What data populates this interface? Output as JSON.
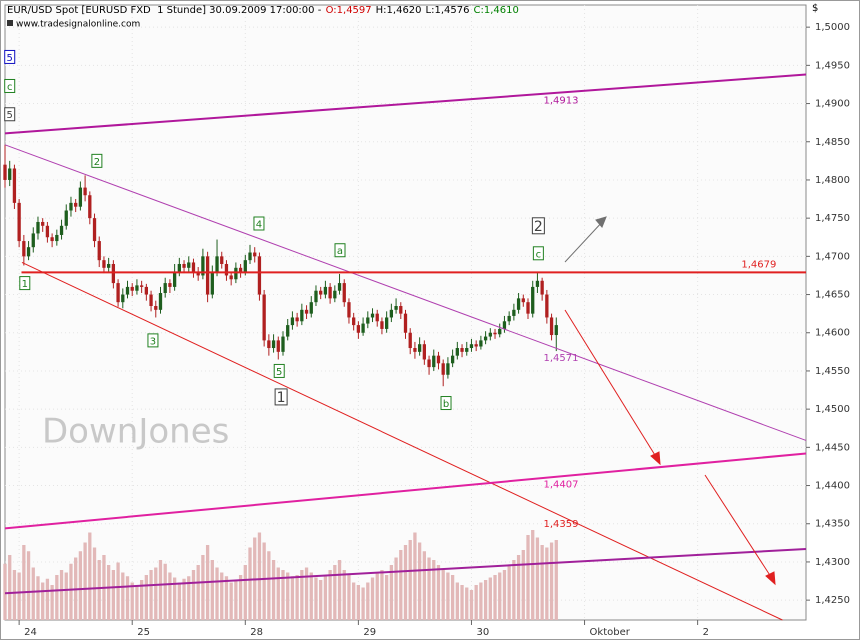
{
  "chart_data": {
    "type": "candlestick",
    "header": {
      "title": "EUR/USD Spot [EURUSD FXD  1 Stunde] 30.09.2009 17:00:00 -",
      "ohlc": [
        {
          "label": "O:1,4597",
          "color": "#d00000"
        },
        {
          "label": "H:1,4620",
          "color": "#000000"
        },
        {
          "label": "L:1,4576",
          "color": "#000000"
        },
        {
          "label": "C:1,4610",
          "color": "#008000"
        }
      ],
      "source": "www.tradesignalonline.com"
    },
    "currency": "$",
    "watermark": "DownJones",
    "up_color": "#1e5e1e",
    "down_color": "#b02020",
    "volume_color": "#e2b8b8",
    "xlim": [
      0,
      170
    ],
    "xticks": [
      {
        "value": 3,
        "label": "24"
      },
      {
        "value": 27,
        "label": "25"
      },
      {
        "value": 51,
        "label": "28"
      },
      {
        "value": 75,
        "label": "29"
      },
      {
        "value": 99,
        "label": "30"
      },
      {
        "value": 123,
        "label": "Oktober"
      },
      {
        "value": 147,
        "label": "2"
      }
    ],
    "ylim": [
      1.4224,
      1.5029
    ],
    "yticks": [
      {
        "value": 1.425,
        "label": "1,4250"
      },
      {
        "value": 1.43,
        "label": "1,4300"
      },
      {
        "value": 1.435,
        "label": "1,4350"
      },
      {
        "value": 1.44,
        "label": "1,4400"
      },
      {
        "value": 1.445,
        "label": "1,4450"
      },
      {
        "value": 1.45,
        "label": "1,4500"
      },
      {
        "value": 1.455,
        "label": "1,4550"
      },
      {
        "value": 1.46,
        "label": "1,4600"
      },
      {
        "value": 1.465,
        "label": "1,4650"
      },
      {
        "value": 1.47,
        "label": "1,4700"
      },
      {
        "value": 1.475,
        "label": "1,4750"
      },
      {
        "value": 1.48,
        "label": "1,4800"
      },
      {
        "value": 1.485,
        "label": "1,4850"
      },
      {
        "value": 1.49,
        "label": "1,4900"
      },
      {
        "value": 1.495,
        "label": "1,4950"
      },
      {
        "value": 1.5,
        "label": "1,5000"
      }
    ],
    "candles": [
      [
        1.482,
        1.4846,
        1.479,
        1.48
      ],
      [
        1.48,
        1.4825,
        1.4792,
        1.4815
      ],
      [
        1.4815,
        1.482,
        1.4762,
        1.477
      ],
      [
        1.477,
        1.4775,
        1.4712,
        1.472
      ],
      [
        1.472,
        1.4728,
        1.4688,
        1.47
      ],
      [
        1.47,
        1.472,
        1.4695,
        1.4712
      ],
      [
        1.4712,
        1.4738,
        1.4705,
        1.473
      ],
      [
        1.473,
        1.4752,
        1.4722,
        1.4745
      ],
      [
        1.4745,
        1.475,
        1.4732,
        1.474
      ],
      [
        1.474,
        1.4745,
        1.4718,
        1.4725
      ],
      [
        1.4725,
        1.473,
        1.4712,
        1.472
      ],
      [
        1.472,
        1.4735,
        1.4714,
        1.4728
      ],
      [
        1.4728,
        1.4748,
        1.4722,
        1.474
      ],
      [
        1.474,
        1.4768,
        1.4735,
        1.476
      ],
      [
        1.476,
        1.4778,
        1.4752,
        1.477
      ],
      [
        1.477,
        1.4775,
        1.4758,
        1.4765
      ],
      [
        1.4765,
        1.4798,
        1.476,
        1.479
      ],
      [
        1.479,
        1.4806,
        1.4772,
        1.478
      ],
      [
        1.478,
        1.4785,
        1.4742,
        1.475
      ],
      [
        1.475,
        1.4756,
        1.4712,
        1.472
      ],
      [
        1.472,
        1.4726,
        1.4686,
        1.4695
      ],
      [
        1.4695,
        1.47,
        1.4678,
        1.4685
      ],
      [
        1.4685,
        1.4698,
        1.468,
        1.469
      ],
      [
        1.469,
        1.4695,
        1.4658,
        1.4665
      ],
      [
        1.4665,
        1.467,
        1.4634,
        1.464
      ],
      [
        1.464,
        1.4658,
        1.4632,
        1.465
      ],
      [
        1.465,
        1.4668,
        1.4645,
        1.466
      ],
      [
        1.466,
        1.4665,
        1.4648,
        1.4655
      ],
      [
        1.4655,
        1.467,
        1.465,
        1.4662
      ],
      [
        1.4662,
        1.4668,
        1.4652,
        1.466
      ],
      [
        1.466,
        1.4664,
        1.4642,
        1.465
      ],
      [
        1.465,
        1.4655,
        1.4628,
        1.4635
      ],
      [
        1.4635,
        1.4642,
        1.462,
        1.463
      ],
      [
        1.463,
        1.466,
        1.4625,
        1.4652
      ],
      [
        1.4652,
        1.4672,
        1.4646,
        1.4665
      ],
      [
        1.4665,
        1.467,
        1.4652,
        1.466
      ],
      [
        1.466,
        1.469,
        1.4655,
        1.468
      ],
      [
        1.468,
        1.4698,
        1.4674,
        1.469
      ],
      [
        1.469,
        1.4695,
        1.4678,
        1.4685
      ],
      [
        1.4685,
        1.47,
        1.468,
        1.4692
      ],
      [
        1.4692,
        1.4697,
        1.4672,
        1.468
      ],
      [
        1.468,
        1.4686,
        1.4668,
        1.4675
      ],
      [
        1.4675,
        1.471,
        1.467,
        1.47
      ],
      [
        1.47,
        1.4706,
        1.464,
        1.465
      ],
      [
        1.465,
        1.4688,
        1.4645,
        1.468
      ],
      [
        1.468,
        1.4722,
        1.4674,
        1.47
      ],
      [
        1.47,
        1.4706,
        1.4684,
        1.469
      ],
      [
        1.469,
        1.4695,
        1.4668,
        1.4675
      ],
      [
        1.4675,
        1.468,
        1.4662,
        1.467
      ],
      [
        1.467,
        1.4692,
        1.4665,
        1.4685
      ],
      [
        1.4685,
        1.469,
        1.4672,
        1.468
      ],
      [
        1.468,
        1.4702,
        1.4675,
        1.4695
      ],
      [
        1.4695,
        1.4715,
        1.469,
        1.4705
      ],
      [
        1.4705,
        1.4712,
        1.4692,
        1.47
      ],
      [
        1.47,
        1.4705,
        1.4642,
        1.465
      ],
      [
        1.465,
        1.4656,
        1.4582,
        1.459
      ],
      [
        1.459,
        1.4598,
        1.457,
        1.458
      ],
      [
        1.458,
        1.4598,
        1.4574,
        1.459
      ],
      [
        1.459,
        1.4595,
        1.4565,
        1.4575
      ],
      [
        1.4575,
        1.4602,
        1.457,
        1.4595
      ],
      [
        1.4595,
        1.4618,
        1.459,
        1.461
      ],
      [
        1.461,
        1.4628,
        1.4604,
        1.462
      ],
      [
        1.462,
        1.4626,
        1.4608,
        1.4615
      ],
      [
        1.4615,
        1.4638,
        1.461,
        1.463
      ],
      [
        1.463,
        1.4636,
        1.4618,
        1.4625
      ],
      [
        1.4625,
        1.4648,
        1.462,
        1.464
      ],
      [
        1.464,
        1.4662,
        1.4635,
        1.4655
      ],
      [
        1.4655,
        1.466,
        1.4644,
        1.465
      ],
      [
        1.465,
        1.4668,
        1.4645,
        1.466
      ],
      [
        1.466,
        1.4665,
        1.4638,
        1.4645
      ],
      [
        1.4645,
        1.4662,
        1.464,
        1.4655
      ],
      [
        1.4655,
        1.4677,
        1.465,
        1.4665
      ],
      [
        1.4665,
        1.467,
        1.4634,
        1.464
      ],
      [
        1.464,
        1.4645,
        1.4612,
        1.462
      ],
      [
        1.462,
        1.4626,
        1.4603,
        1.461
      ],
      [
        1.461,
        1.4615,
        1.4592,
        1.46
      ],
      [
        1.46,
        1.462,
        1.4596,
        1.4612
      ],
      [
        1.4612,
        1.4628,
        1.4606,
        1.462
      ],
      [
        1.462,
        1.4632,
        1.4614,
        1.4625
      ],
      [
        1.4625,
        1.463,
        1.4608,
        1.4615
      ],
      [
        1.4615,
        1.462,
        1.4598,
        1.4605
      ],
      [
        1.4605,
        1.4628,
        1.46,
        1.462
      ],
      [
        1.462,
        1.4638,
        1.4614,
        1.463
      ],
      [
        1.463,
        1.4645,
        1.4625,
        1.4635
      ],
      [
        1.4635,
        1.464,
        1.4618,
        1.4625
      ],
      [
        1.4625,
        1.463,
        1.4592,
        1.46
      ],
      [
        1.46,
        1.4606,
        1.4572,
        1.458
      ],
      [
        1.458,
        1.4588,
        1.4566,
        1.4575
      ],
      [
        1.4575,
        1.4594,
        1.457,
        1.4585
      ],
      [
        1.4585,
        1.459,
        1.4558,
        1.4565
      ],
      [
        1.4565,
        1.457,
        1.4545,
        1.4555
      ],
      [
        1.4555,
        1.4578,
        1.455,
        1.457
      ],
      [
        1.457,
        1.4575,
        1.4552,
        1.456
      ],
      [
        1.456,
        1.4565,
        1.453,
        1.4545
      ],
      [
        1.4545,
        1.4568,
        1.454,
        1.456
      ],
      [
        1.456,
        1.4578,
        1.4555,
        1.457
      ],
      [
        1.457,
        1.4588,
        1.4565,
        1.458
      ],
      [
        1.458,
        1.4585,
        1.4568,
        1.4575
      ],
      [
        1.4575,
        1.4588,
        1.457,
        1.458
      ],
      [
        1.458,
        1.4592,
        1.4575,
        1.4585
      ],
      [
        1.4585,
        1.459,
        1.4576,
        1.4582
      ],
      [
        1.4582,
        1.4596,
        1.4578,
        1.459
      ],
      [
        1.459,
        1.4602,
        1.4585,
        1.4595
      ],
      [
        1.4595,
        1.4606,
        1.459,
        1.46
      ],
      [
        1.46,
        1.4605,
        1.4592,
        1.4598
      ],
      [
        1.4598,
        1.4612,
        1.4594,
        1.4605
      ],
      [
        1.4605,
        1.4622,
        1.46,
        1.4615
      ],
      [
        1.4615,
        1.4628,
        1.461,
        1.4622
      ],
      [
        1.4622,
        1.4638,
        1.4616,
        1.463
      ],
      [
        1.463,
        1.4652,
        1.4625,
        1.4645
      ],
      [
        1.4645,
        1.465,
        1.4634,
        1.464
      ],
      [
        1.464,
        1.4645,
        1.4618,
        1.4625
      ],
      [
        1.4625,
        1.4668,
        1.462,
        1.466
      ],
      [
        1.466,
        1.4679,
        1.4652,
        1.4668
      ],
      [
        1.4668,
        1.4672,
        1.4642,
        1.465
      ],
      [
        1.465,
        1.4656,
        1.4612,
        1.462
      ],
      [
        1.462,
        1.4625,
        1.459,
        1.4597
      ],
      [
        1.4597,
        1.462,
        1.4576,
        1.461
      ]
    ],
    "volume_ylim": [
      0,
      100
    ],
    "volume": [
      45,
      52,
      40,
      38,
      60,
      55,
      42,
      35,
      30,
      33,
      28,
      36,
      40,
      38,
      45,
      50,
      55,
      62,
      70,
      58,
      48,
      52,
      44,
      40,
      46,
      38,
      35,
      30,
      28,
      32,
      36,
      40,
      42,
      48,
      45,
      38,
      34,
      30,
      33,
      35,
      40,
      44,
      52,
      60,
      48,
      42,
      38,
      35,
      30,
      32,
      36,
      44,
      58,
      66,
      70,
      62,
      55,
      48,
      42,
      40,
      38,
      35,
      36,
      40,
      42,
      38,
      34,
      32,
      36,
      40,
      44,
      48,
      40,
      36,
      30,
      28,
      26,
      30,
      34,
      38,
      40,
      36,
      44,
      50,
      56,
      60,
      64,
      70,
      62,
      55,
      50,
      48,
      44,
      40,
      38,
      36,
      30,
      28,
      26,
      24,
      28,
      30,
      32,
      34,
      36,
      38,
      40,
      44,
      48,
      52,
      56,
      68,
      72,
      66,
      60,
      58,
      62,
      64
    ],
    "trendlines": [
      {
        "start": [
          0,
          1.4861
        ],
        "end": [
          170,
          1.4938
        ],
        "color": "#b0179b",
        "width": 2,
        "label": "1,4913"
      },
      {
        "start": [
          0,
          1.4846
        ],
        "end": [
          170,
          1.4459
        ],
        "color": "#b040b0",
        "width": 1,
        "label": "1,4571"
      },
      {
        "start": [
          3.6,
          1.4692
        ],
        "end": [
          165,
          1.4224
        ],
        "color": "#e02020",
        "width": 1,
        "label": "1,4359"
      },
      {
        "start": [
          3.5,
          1.4679
        ],
        "end": [
          170,
          1.4679
        ],
        "color": "#e02020",
        "width": 2,
        "label": "1,4679"
      },
      {
        "start": [
          0,
          1.4344
        ],
        "end": [
          170,
          1.4442
        ],
        "color": "#e020a0",
        "width": 2,
        "label": "1,4407"
      },
      {
        "start": [
          0,
          1.4259
        ],
        "end": [
          170,
          1.4317
        ],
        "color": "#a0209a",
        "width": 2
      }
    ],
    "wave_labels": [
      {
        "text": "5",
        "x": 1,
        "y": 1.4961,
        "color": "#1010c0"
      },
      {
        "text": "c",
        "x": 1,
        "y": 1.4923,
        "color": "#208020"
      },
      {
        "text": "5",
        "x": 1,
        "y": 1.4886,
        "color": "#404040"
      },
      {
        "text": "1",
        "x": 4.2,
        "y": 1.4665,
        "color": "#208020"
      },
      {
        "text": "2",
        "x": 19.5,
        "y": 1.4825,
        "color": "#208020"
      },
      {
        "text": "3",
        "x": 31.4,
        "y": 1.459,
        "color": "#208020"
      },
      {
        "text": "4",
        "x": 53.9,
        "y": 1.4743,
        "color": "#208020"
      },
      {
        "text": "5",
        "x": 58.2,
        "y": 1.455,
        "color": "#208020"
      },
      {
        "text": "1",
        "x": 58.6,
        "y": 1.4516,
        "color": "#404040",
        "size": "large"
      },
      {
        "text": "a",
        "x": 71.1,
        "y": 1.4708,
        "color": "#208020"
      },
      {
        "text": "b",
        "x": 93.6,
        "y": 1.4508,
        "color": "#208020"
      },
      {
        "text": "2",
        "x": 113.2,
        "y": 1.474,
        "color": "#404040",
        "size": "large"
      },
      {
        "text": "c",
        "x": 113.2,
        "y": 1.4704,
        "color": "#208020"
      }
    ]
  }
}
